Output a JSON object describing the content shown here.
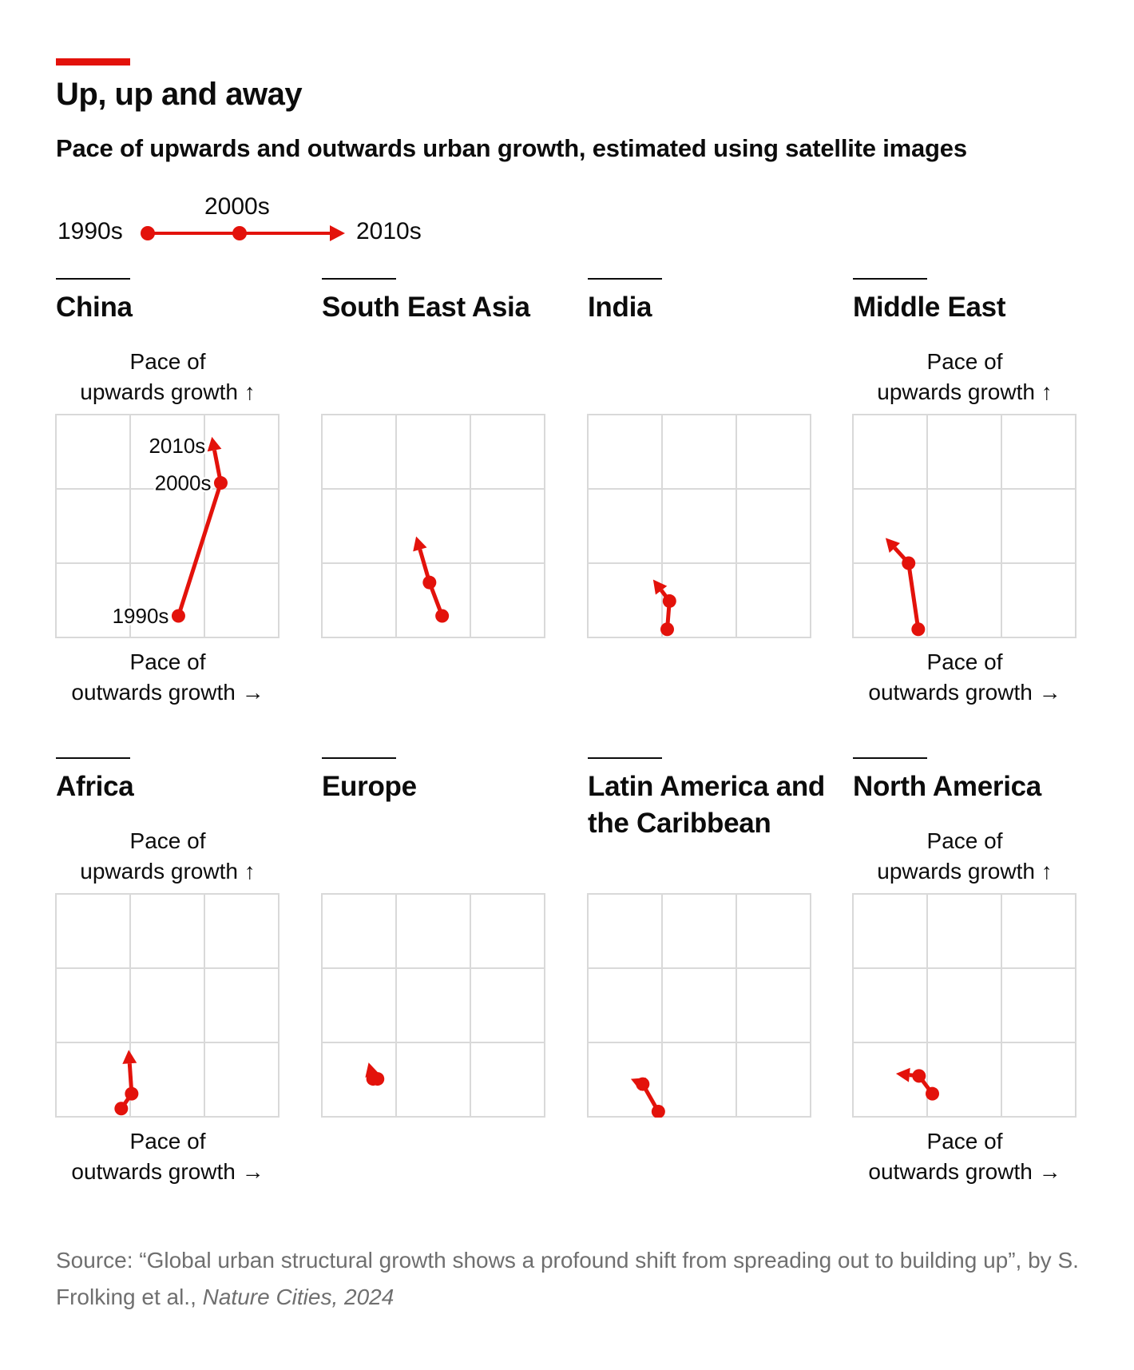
{
  "header": {
    "title": "Up, up and away",
    "subtitle": "Pace of upwards and outwards urban growth, estimated using satellite images"
  },
  "legend": {
    "start_label": "1990s",
    "mid_label": "2000s",
    "end_label": "2010s"
  },
  "axis_labels": {
    "y_line1": "Pace of",
    "y_line2": "upwards growth ↑",
    "x_line1": "Pace of",
    "x_line2": "outwards growth →"
  },
  "source": {
    "text": "Source: “Global urban structural growth shows a profound shift from spreading out to building up”, by S. Frolking et al., ",
    "journal": "Nature Cities, 2024"
  },
  "colors": {
    "accent": "#e3120b",
    "series": "#e3120b",
    "grid": "#d9d9d9",
    "text": "#0c0c0c",
    "source": "#6f6f6f"
  },
  "chart_data": {
    "type": "line",
    "xlabel": "Pace of outwards growth",
    "ylabel": "Pace of upwards growth",
    "xlim": [
      0,
      3
    ],
    "ylim": [
      0,
      3
    ],
    "grid": true,
    "legend": "top-left",
    "periods": [
      "1990s",
      "2000s",
      "2010s"
    ],
    "panels": [
      {
        "title": "China",
        "show_axis_labels": true,
        "show_point_labels": true,
        "x": [
          1.65,
          2.22,
          2.1
        ],
        "y": [
          0.29,
          2.08,
          2.7
        ]
      },
      {
        "title": "South East Asia",
        "show_axis_labels": false,
        "show_point_labels": false,
        "x": [
          1.62,
          1.45,
          1.27
        ],
        "y": [
          0.29,
          0.74,
          1.36
        ]
      },
      {
        "title": "India",
        "show_axis_labels": false,
        "show_point_labels": false,
        "x": [
          1.07,
          1.1,
          0.88
        ],
        "y": [
          0.11,
          0.49,
          0.78
        ]
      },
      {
        "title": "Middle East",
        "show_axis_labels": true,
        "show_point_labels": false,
        "x": [
          0.88,
          0.75,
          0.44
        ],
        "y": [
          0.11,
          1.0,
          1.34
        ]
      },
      {
        "title": "Africa",
        "show_axis_labels": true,
        "show_point_labels": false,
        "x": [
          0.88,
          1.02,
          0.98
        ],
        "y": [
          0.11,
          0.31,
          0.9
        ]
      },
      {
        "title": "Europe",
        "show_axis_labels": false,
        "show_point_labels": false,
        "x": [
          0.75,
          0.69,
          0.63
        ],
        "y": [
          0.51,
          0.51,
          0.73
        ]
      },
      {
        "title": "Latin America and the Caribbean",
        "show_axis_labels": false,
        "show_point_labels": false,
        "x": [
          0.95,
          0.74,
          0.58
        ],
        "y": [
          0.07,
          0.44,
          0.51
        ]
      },
      {
        "title": "North America",
        "show_axis_labels": true,
        "show_point_labels": false,
        "x": [
          1.07,
          0.89,
          0.58
        ],
        "y": [
          0.31,
          0.55,
          0.58
        ]
      }
    ]
  }
}
